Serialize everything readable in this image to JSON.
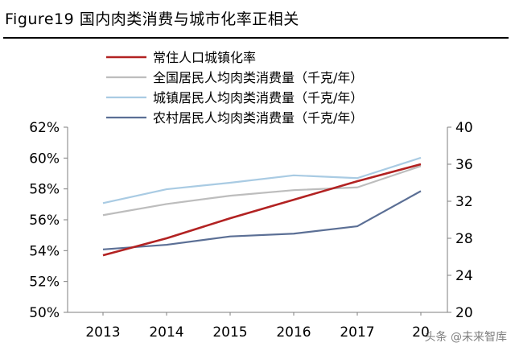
{
  "figure_title": "Figure19 国内肉类消费与城市化率正相关",
  "watermark": "头条 @未来智库",
  "chart_data": {
    "type": "line",
    "categories": [
      "2013",
      "2014",
      "2015",
      "2016",
      "2017",
      "2018"
    ],
    "x_tick_labels": [
      "2013",
      "2014",
      "2015",
      "2016",
      "2017",
      "20"
    ],
    "left_axis": {
      "range": [
        50,
        62
      ],
      "ticks": [
        "50%",
        "52%",
        "54%",
        "56%",
        "58%",
        "60%",
        "62%"
      ],
      "tick_values": [
        50,
        52,
        54,
        56,
        58,
        60,
        62
      ],
      "unit": "%"
    },
    "right_axis": {
      "range": [
        20,
        40
      ],
      "ticks": [
        "20",
        "24",
        "28",
        "32",
        "36",
        "40"
      ],
      "tick_values": [
        20,
        24,
        28,
        32,
        36,
        40
      ]
    },
    "grid": false,
    "legend_position": "top-left",
    "series": [
      {
        "name": "常住人口城镇化率",
        "axis": "left",
        "color": "#b22222",
        "values": [
          53.7,
          54.8,
          56.1,
          57.3,
          58.5,
          59.6
        ]
      },
      {
        "name": "全国居民人均肉类消费量（千克/年）",
        "axis": "right",
        "color": "#bdbdbd",
        "values": [
          30.5,
          31.7,
          32.6,
          33.2,
          33.5,
          35.8
        ]
      },
      {
        "name": "城镇居民人均肉类消费量（千克/年）",
        "axis": "right",
        "color": "#a9cbe3",
        "values": [
          31.8,
          33.3,
          34.0,
          34.8,
          34.5,
          36.7
        ]
      },
      {
        "name": "农村居民人均肉类消费量（千克/年）",
        "axis": "right",
        "color": "#5b6f95",
        "values": [
          26.8,
          27.3,
          28.2,
          28.5,
          29.3,
          33.1
        ]
      }
    ]
  }
}
